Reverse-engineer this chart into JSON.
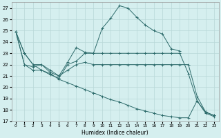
{
  "xlabel": "Humidex (Indice chaleur)",
  "x_labels": [
    "0",
    "1",
    "2",
    "3",
    "4",
    "5",
    "6",
    "7",
    "8",
    "9",
    "10",
    "11",
    "12",
    "13",
    "14",
    "15",
    "16",
    "17",
    "18",
    "19",
    "20",
    "21",
    "22",
    "23"
  ],
  "series": [
    {
      "x": [
        0,
        1,
        2,
        3,
        4,
        5,
        6,
        7,
        8,
        9,
        10,
        11,
        12,
        13,
        14,
        15,
        16,
        17,
        18,
        19
      ],
      "y": [
        24.9,
        23.0,
        22.0,
        22.0,
        21.3,
        21.0,
        22.2,
        23.5,
        23.1,
        23.0,
        25.2,
        26.1,
        27.2,
        27.0,
        26.2,
        25.5,
        25.0,
        24.7,
        23.4,
        23.2
      ]
    },
    {
      "x": [
        0,
        1,
        2,
        3,
        4,
        5,
        6,
        7,
        8,
        9,
        10,
        11,
        12,
        13,
        14,
        15,
        16,
        17,
        18,
        19,
        20,
        21,
        22,
        23
      ],
      "y": [
        24.9,
        23.0,
        22.0,
        21.5,
        21.1,
        20.8,
        22.0,
        22.3,
        23.0,
        23.0,
        23.0,
        23.0,
        23.0,
        23.0,
        23.0,
        23.0,
        23.0,
        23.0,
        23.0,
        23.0,
        21.2,
        18.8,
        17.8,
        17.5
      ]
    },
    {
      "x": [
        0,
        1,
        2,
        3,
        4,
        5,
        6,
        7,
        8,
        9,
        10,
        11,
        12,
        13,
        14,
        15,
        16,
        17,
        18,
        19,
        20,
        21,
        22,
        23
      ],
      "y": [
        24.9,
        22.0,
        21.8,
        22.0,
        21.5,
        21.0,
        21.5,
        22.0,
        22.2,
        22.0,
        22.0,
        22.0,
        22.0,
        22.0,
        22.0,
        22.0,
        22.0,
        22.0,
        22.0,
        22.0,
        22.0,
        19.2,
        17.8,
        17.5
      ]
    },
    {
      "x": [
        0,
        1,
        2,
        3,
        4,
        5,
        6,
        7,
        8,
        9,
        10,
        11,
        12,
        13,
        14,
        15,
        16,
        17,
        18,
        19,
        20,
        21,
        22,
        23
      ],
      "y": [
        24.9,
        22.0,
        21.5,
        21.5,
        21.2,
        20.7,
        20.4,
        20.1,
        19.8,
        19.5,
        19.2,
        18.9,
        18.7,
        18.4,
        18.1,
        17.9,
        17.7,
        17.5,
        17.4,
        17.3,
        17.3,
        18.8,
        17.7,
        17.4
      ]
    }
  ],
  "line_color": "#2d6b6b",
  "bg_color": "#d5efef",
  "grid_color": "#b8d8d8",
  "ylim": [
    17,
    27.5
  ],
  "yticks": [
    17,
    18,
    19,
    20,
    21,
    22,
    23,
    24,
    25,
    26,
    27
  ],
  "figsize": [
    3.2,
    2.0
  ],
  "dpi": 100
}
